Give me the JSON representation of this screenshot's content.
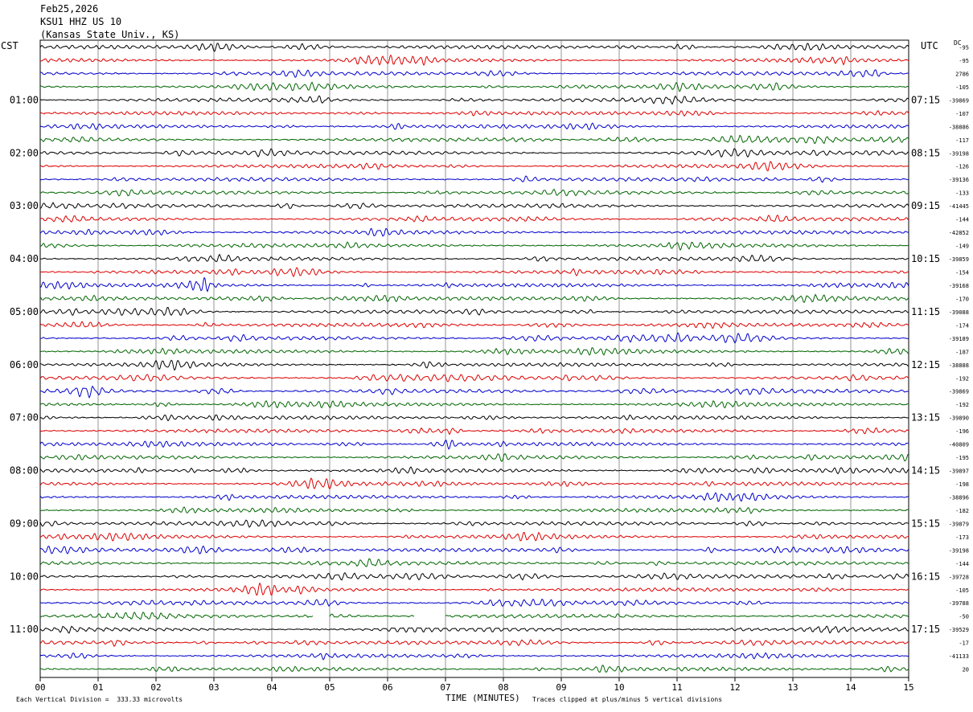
{
  "header": {
    "date": "Feb25,2026",
    "station": "KSU1 HHZ US 10",
    "location": "(Kansas State Univ., KS)"
  },
  "left_tz": "CST",
  "right_tz": "UTC",
  "dc_label": "DC",
  "footer": {
    "left": "Each Vertical Division =  333.33 microvolts",
    "right": "Traces clipped at plus/minus 5 vertical divisions"
  },
  "colors": {
    "trace": [
      "#000000",
      "#dd0000",
      "#0000cc",
      "#006600"
    ],
    "grid": "#888888"
  },
  "chart_data": {
    "type": "line",
    "title": "",
    "xlabel": "TIME (MINUTES)",
    "xlim": [
      0,
      15
    ],
    "x_ticks": [
      "00",
      "01",
      "02",
      "03",
      "04",
      "05",
      "06",
      "07",
      "08",
      "09",
      "10",
      "11",
      "12",
      "13",
      "14",
      "15"
    ],
    "rows_per_hour": 4,
    "rows": 48,
    "left_hour_labels": [
      "01:00",
      "02:00",
      "03:00",
      "04:00",
      "05:00",
      "06:00",
      "07:00",
      "08:00",
      "09:00",
      "10:00",
      "11:00"
    ],
    "right_hour_labels": [
      "07:15",
      "08:15",
      "09:15",
      "10:15",
      "11:15",
      "12:15",
      "13:15",
      "14:15",
      "15:15",
      "16:15",
      "17:15"
    ],
    "dc_offsets": [
      "-95",
      "-95",
      "2786",
      "-105",
      "-39869",
      "-107",
      "-38886",
      "-117",
      "-39198",
      "-126",
      "-39136",
      "-133",
      "-41445",
      "-144",
      "-42852",
      "-149",
      "-39859",
      "-154",
      "-39168",
      "-170",
      "-39088",
      "-174",
      "-39189",
      "-187",
      "-38888",
      "-192",
      "-39869",
      "-192",
      "-39890",
      "-196",
      "-40809",
      "-195",
      "-39897",
      "-198",
      "-38896",
      "-182",
      "-39879",
      "-173",
      "-39198",
      "-144",
      "-39728",
      "-105",
      "-39788",
      "-50",
      "-39529",
      "-17",
      "-41133",
      "20"
    ],
    "gaps": [
      {
        "row": 43,
        "start_min": 4.72,
        "end_min": 5.0
      },
      {
        "row": 43,
        "start_min": 6.47,
        "end_min": 7.0
      }
    ]
  }
}
